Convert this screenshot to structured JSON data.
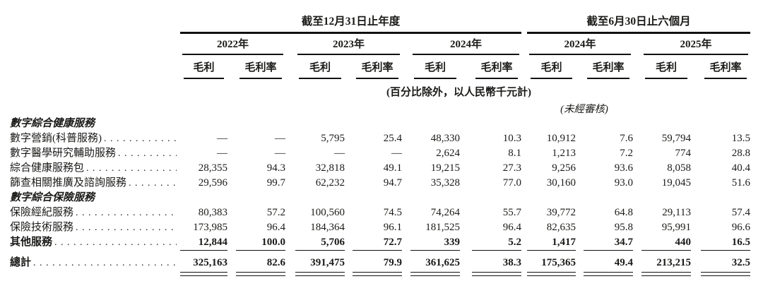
{
  "document": {
    "background": "#ffffff",
    "text_color": "#1a1a18",
    "rule_color": "#111111"
  },
  "header": {
    "period_groups": [
      {
        "label": "截至12月31日止年度"
      },
      {
        "label": "截至6月30日止六個月"
      }
    ],
    "years": [
      "2022年",
      "2023年",
      "2024年",
      "2024年",
      "2025年"
    ],
    "metrics": {
      "gp": "毛利",
      "gpm": "毛利率"
    }
  },
  "notes": {
    "unit_note": "(百分比除外，以人民幣千元計)",
    "unaudited_note": "(未經審核)"
  },
  "rows": [
    {
      "type": "section",
      "label": "數字綜合健康服務",
      "v": []
    },
    {
      "type": "data",
      "label": "數字營銷(科普服務)",
      "v": [
        "—",
        "—",
        "5,795",
        "25.4",
        "48,330",
        "10.3",
        "10,912",
        "7.6",
        "59,794",
        "13.5"
      ]
    },
    {
      "type": "data",
      "label": "數字醫學研究輔助服務",
      "v": [
        "—",
        "—",
        "—",
        "—",
        "2,624",
        "8.1",
        "1,213",
        "7.2",
        "774",
        "28.8"
      ]
    },
    {
      "type": "data",
      "label": "綜合健康服務包",
      "v": [
        "28,355",
        "94.3",
        "32,818",
        "49.1",
        "19,215",
        "27.3",
        "9,256",
        "93.6",
        "8,058",
        "40.4"
      ]
    },
    {
      "type": "data",
      "label": "篩查相關推廣及諮詢服務",
      "v": [
        "29,596",
        "99.7",
        "62,232",
        "94.7",
        "35,328",
        "77.0",
        "30,160",
        "93.0",
        "19,045",
        "51.6"
      ]
    },
    {
      "type": "section",
      "label": "數字綜合保險服務",
      "v": []
    },
    {
      "type": "data",
      "label": "保險經紀服務",
      "v": [
        "80,383",
        "57.2",
        "100,560",
        "74.5",
        "74,264",
        "55.7",
        "39,772",
        "64.8",
        "29,113",
        "57.4"
      ]
    },
    {
      "type": "data",
      "label": "保險技術服務",
      "v": [
        "173,985",
        "96.4",
        "184,364",
        "96.1",
        "181,525",
        "96.4",
        "82,635",
        "95.8",
        "95,991",
        "96.6"
      ]
    },
    {
      "type": "data_bold_ruled",
      "label": "其他服務",
      "v": [
        "12,844",
        "100.0",
        "5,706",
        "72.7",
        "339",
        "5.2",
        "1,417",
        "34.7",
        "440",
        "16.5"
      ]
    },
    {
      "type": "total",
      "label": "總計",
      "v": [
        "325,163",
        "82.6",
        "391,475",
        "79.9",
        "361,625",
        "38.3",
        "175,365",
        "49.4",
        "213,215",
        "32.5"
      ]
    }
  ]
}
